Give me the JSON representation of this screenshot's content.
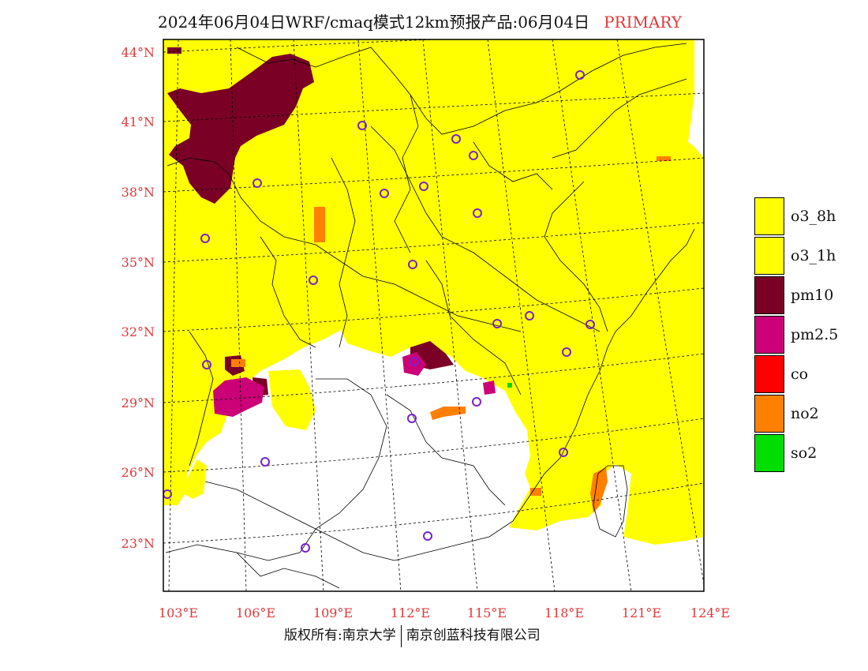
{
  "header": {
    "title": "2024年06月04日WRF/cmaq模式12km预报产品:06月04日",
    "tag": "PRIMARY"
  },
  "map": {
    "lat_labels": [
      "44°N",
      "41°N",
      "38°N",
      "35°N",
      "32°N",
      "29°N",
      "26°N",
      "23°N"
    ],
    "lon_labels": [
      "103°E",
      "106°E",
      "109°E",
      "112°E",
      "115°E",
      "118°E",
      "121°E",
      "124°E"
    ]
  },
  "legend": {
    "items": [
      {
        "label": "o3_8h",
        "color": "#ffff00"
      },
      {
        "label": "o3_1h",
        "color": "#ffff00"
      },
      {
        "label": "pm10",
        "color": "#7a0026"
      },
      {
        "label": "pm2.5",
        "color": "#cc0077"
      },
      {
        "label": "co",
        "color": "#ff0000"
      },
      {
        "label": "no2",
        "color": "#ff7f00"
      },
      {
        "label": "so2",
        "color": "#00dd00"
      }
    ]
  },
  "footer": {
    "left": "版权所有:南京大学",
    "right": "南京创蓝科技有限公司"
  }
}
